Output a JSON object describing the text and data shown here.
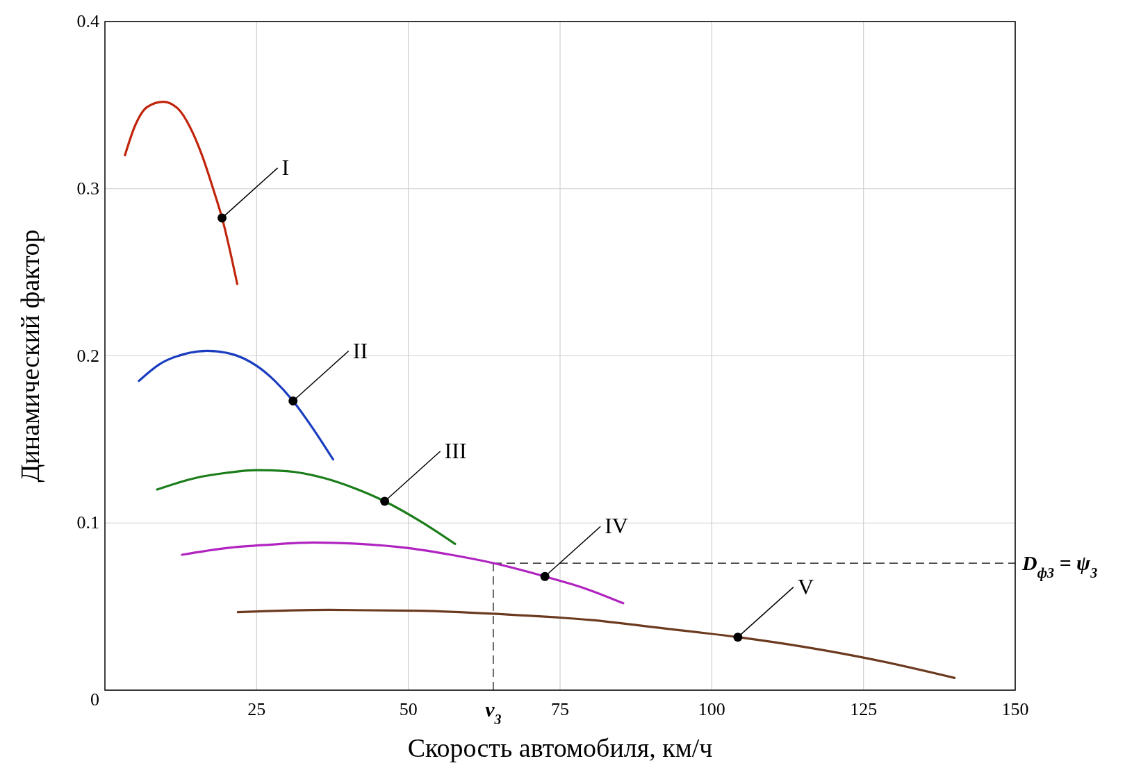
{
  "chart_data": {
    "type": "line",
    "xlabel": "Скорость автомобиля, км/ч",
    "ylabel": "Динамический фактор",
    "xlim": [
      0,
      150
    ],
    "ylim": [
      0,
      0.4
    ],
    "xticks": [
      25,
      50,
      75,
      100,
      125,
      150
    ],
    "yticks": [
      0,
      0.1,
      0.2,
      0.3,
      0.4
    ],
    "grid": true,
    "marker": "none",
    "line_style": "solid",
    "series": [
      {
        "color": "#c0250c",
        "x": [
          3.3,
          5,
          7,
          9.6,
          12,
          14,
          16,
          18,
          19.3,
          21.8
        ],
        "values": [
          0.32,
          0.338,
          0.349,
          0.352,
          0.348,
          0.337,
          0.32,
          0.298,
          0.2825,
          0.243
        ]
      },
      {
        "color": "#1a3dbf",
        "x": [
          5.6,
          9,
          13,
          16.9,
          21,
          25,
          28,
          31,
          34,
          37.6
        ],
        "values": [
          0.185,
          0.195,
          0.201,
          0.203,
          0.201,
          0.194,
          0.185,
          0.173,
          0.158,
          0.138
        ]
      },
      {
        "color": "#1a7d1a",
        "x": [
          8.6,
          15,
          20,
          25,
          30,
          36,
          41,
          46.1,
          52,
          57.7
        ],
        "values": [
          0.12,
          0.127,
          0.13,
          0.1316,
          0.131,
          0.127,
          0.121,
          0.113,
          0.101,
          0.0875
        ]
      },
      {
        "color": "#b023c0",
        "x": [
          12.7,
          20,
          27,
          34.4,
          42,
          50,
          57,
          64,
          72.5,
          79,
          85.4
        ],
        "values": [
          0.081,
          0.085,
          0.087,
          0.0883,
          0.0875,
          0.085,
          0.081,
          0.076,
          0.068,
          0.061,
          0.052
        ]
      },
      {
        "color": "#6b3a1f",
        "x": [
          21.9,
          37,
          52,
          65,
          80,
          92,
          104.3,
          115,
          127,
          140
        ],
        "values": [
          0.0467,
          0.048,
          0.0475,
          0.0455,
          0.042,
          0.037,
          0.0317,
          0.026,
          0.018,
          0.0073
        ]
      }
    ],
    "ref_lines": [
      {
        "axis": "x",
        "value": 64,
        "label": "v$_{3}$",
        "line_style": "dashed",
        "color": "#000000"
      },
      {
        "axis": "y",
        "value": 0.076,
        "label": "D$_{ф3}$ = ψ$_{3}$",
        "line_style": "dashed",
        "color": "#000000"
      }
    ],
    "annotations": [
      {
        "text": "I",
        "x": 19.3,
        "y": 0.2825
      },
      {
        "text": "II",
        "x": 31,
        "y": 0.173
      },
      {
        "text": "III",
        "x": 46.1,
        "y": 0.113
      },
      {
        "text": "IV",
        "x": 72.5,
        "y": 0.068
      },
      {
        "text": "V",
        "x": 104.3,
        "y": 0.0317
      }
    ]
  }
}
